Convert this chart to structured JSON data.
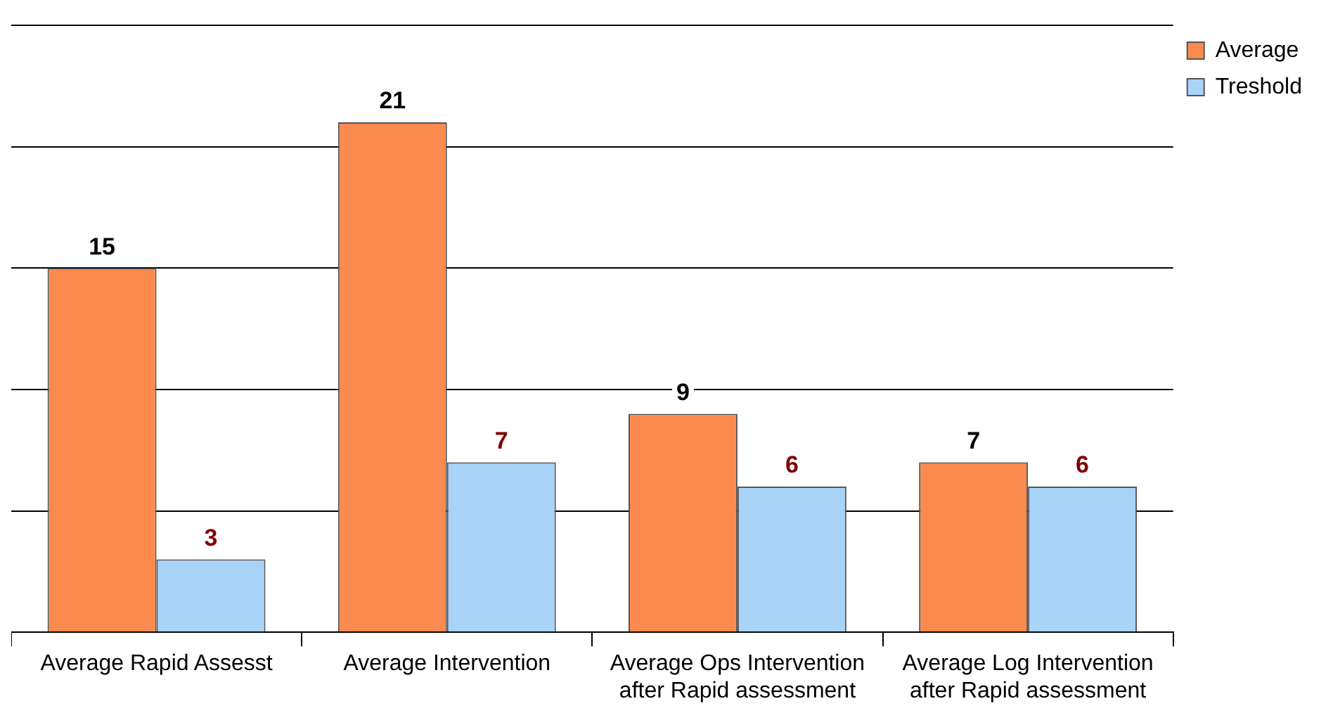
{
  "chart_data": {
    "type": "bar",
    "categories": [
      "Average Rapid Assesst",
      "Average Intervention",
      "Average Ops Intervention after Rapid assessment",
      "Average Log Intervention after Rapid assessment"
    ],
    "series": [
      {
        "name": "Average",
        "color": "#fb8a4e",
        "values": [
          15,
          21,
          9,
          7
        ]
      },
      {
        "name": "Treshold",
        "color": "#a9d3f7",
        "values": [
          3,
          7,
          6,
          6
        ]
      }
    ],
    "ylim": [
      0,
      25
    ],
    "yticks": [
      {
        "value": 0,
        "label": null
      },
      {
        "value": 5,
        "label": null
      },
      {
        "value": 10,
        "label": null
      },
      {
        "value": 15,
        "label": null
      },
      {
        "value": 20,
        "label": null
      },
      {
        "value": 25,
        "label": null
      }
    ],
    "tick_labels": "x",
    "grid": "y",
    "legend": "top right",
    "data_labels": true
  }
}
